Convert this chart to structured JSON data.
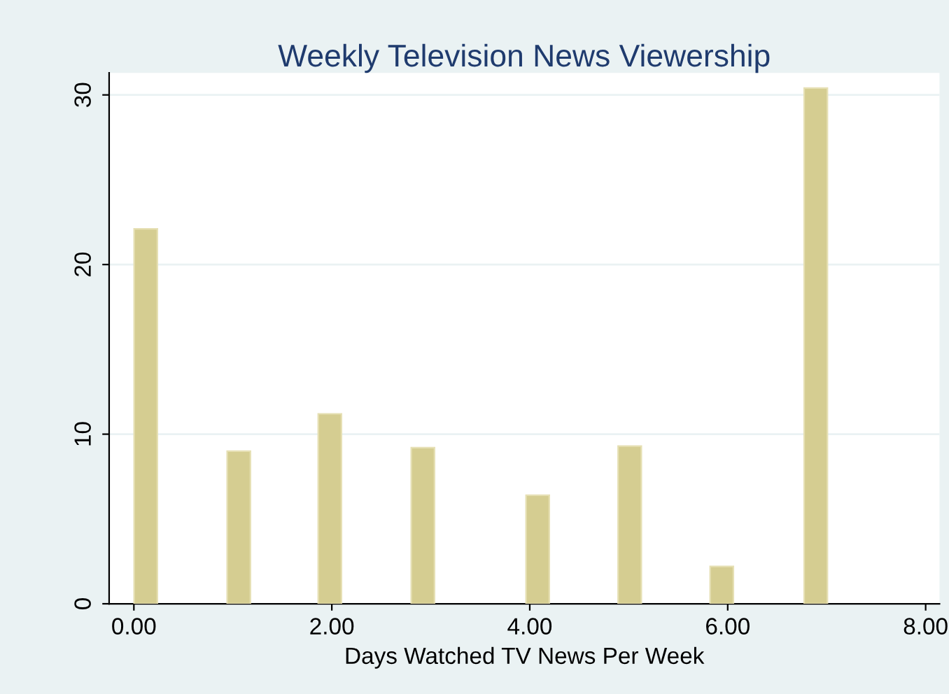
{
  "chart_data": {
    "type": "bar",
    "title": "Weekly Television News Viewership",
    "xlabel": "Days Watched TV News Per Week",
    "x": [
      0.12,
      1.06,
      1.98,
      2.92,
      4.08,
      5.01,
      5.94,
      6.89
    ],
    "values": [
      22.1,
      9.0,
      11.2,
      9.2,
      6.4,
      9.3,
      2.2,
      30.4
    ],
    "color": "#d5cd91",
    "xlim": [
      -0.25,
      8.14
    ],
    "xticks": [
      {
        "value": 0,
        "label": "0.00"
      },
      {
        "value": 2,
        "label": "2.00"
      },
      {
        "value": 4,
        "label": "4.00"
      },
      {
        "value": 6,
        "label": "6.00"
      },
      {
        "value": 8,
        "label": "8.00"
      }
    ],
    "ylim": [
      0,
      31.3
    ],
    "yticks": [
      0,
      10,
      20,
      30
    ],
    "grid": "y"
  }
}
